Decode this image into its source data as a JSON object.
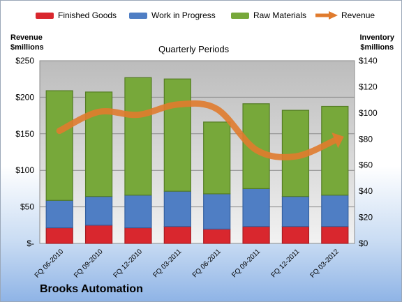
{
  "chart_data": {
    "type": "bar",
    "stacked": true,
    "subtitle": "Quarterly Periods",
    "company": "Brooks Automation",
    "categories": [
      "FQ 06-2010",
      "FQ 09-2010",
      "FQ 12-2010",
      "FQ 03-2011",
      "FQ 06-2011",
      "FQ 09-2011",
      "FQ 12-2011",
      "FQ 03-2012"
    ],
    "series": [
      {
        "name": "Finished Goods",
        "axis": "right",
        "color": "#d9272e",
        "values": [
          12,
          14,
          12,
          13,
          11,
          13,
          13,
          13
        ]
      },
      {
        "name": "Work in Progress",
        "axis": "right",
        "color": "#4f7ec4",
        "values": [
          21,
          22,
          25,
          27,
          27,
          29,
          23,
          24
        ]
      },
      {
        "name": "Raw Materials",
        "axis": "right",
        "color": "#77a83a",
        "values": [
          84,
          80,
          90,
          86,
          55,
          65,
          66,
          68
        ]
      },
      {
        "name": "Revenue",
        "axis": "left",
        "type": "line",
        "color": "#e07b2d",
        "values": [
          154,
          180,
          176,
          190,
          184,
          128,
          119,
          141
        ]
      }
    ],
    "y_left": {
      "title_line1": "Revenue",
      "title_line2": "$millions",
      "range": [
        0,
        250
      ],
      "ticks": [
        "$-",
        "$50",
        "$100",
        "$150",
        "$200",
        "$250"
      ]
    },
    "y_right": {
      "title_line1": "Inventory",
      "title_line2": "$millions",
      "range": [
        0,
        140
      ],
      "ticks": [
        "$0",
        "$20",
        "$40",
        "$60",
        "$80",
        "$100",
        "$120",
        "$140"
      ]
    },
    "grid": true,
    "legend_position": "top"
  }
}
